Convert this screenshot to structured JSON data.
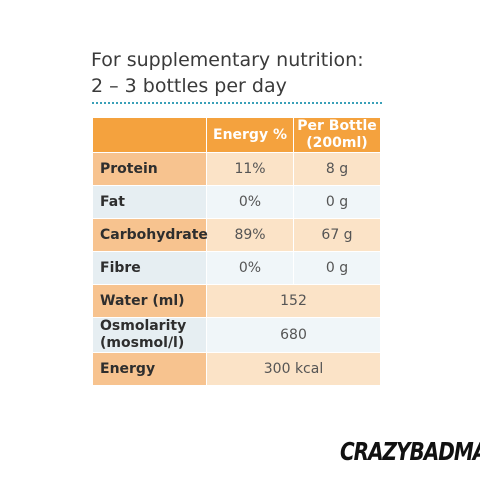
{
  "heading": {
    "line1": "For supplementary nutrition:",
    "line2": "2 – 3 bottles per day"
  },
  "table": {
    "columns": [
      "",
      "Energy %",
      "Per Bottle (200ml)"
    ],
    "header_col3_line1": "Per Bottle",
    "header_col3_line2": "(200ml)",
    "rows": [
      {
        "label": "Protein",
        "energy": "11%",
        "per_bottle": "8 g"
      },
      {
        "label": "Fat",
        "energy": "0%",
        "per_bottle": "0 g"
      },
      {
        "label": "Carbohydrate",
        "energy": "89%",
        "per_bottle": "67 g"
      },
      {
        "label": "Fibre",
        "energy": "0%",
        "per_bottle": "0 g"
      },
      {
        "label": "Water (ml)",
        "value": "152"
      },
      {
        "label_line1": "Osmolarity",
        "label_line2": "(mosmol/l)",
        "value": "680"
      },
      {
        "label": "Energy",
        "value": "300 kcal"
      }
    ]
  },
  "brand": "CRAZYBADMAN",
  "colors": {
    "header": "#f4a23e",
    "accent_dots": "#3aa0b8"
  }
}
